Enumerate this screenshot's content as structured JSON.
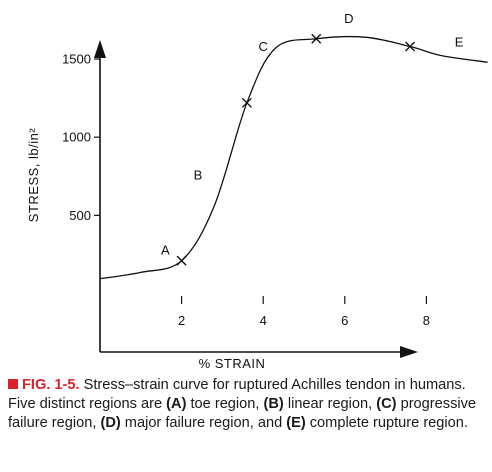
{
  "chart_data": {
    "type": "line",
    "xlabel": "% STRAIN",
    "ylabel": "STRESS, lb/in²",
    "xlim": [
      0,
      10
    ],
    "ylim": [
      0,
      1750
    ],
    "x_ticks": [
      2,
      4,
      6,
      8
    ],
    "y_ticks": [
      500,
      1000,
      1500
    ],
    "series": [
      {
        "x": [
          0,
          1,
          2,
          2.8,
          3.6,
          4.3,
          5.3,
          6.5,
          7.6,
          8.4,
          9.5
        ],
        "values": [
          95,
          135,
          210,
          560,
          1220,
          1570,
          1630,
          1640,
          1580,
          1520,
          1480
        ]
      }
    ],
    "markers": [
      {
        "x": 2.0,
        "y": 210
      },
      {
        "x": 3.6,
        "y": 1220
      },
      {
        "x": 5.3,
        "y": 1630
      },
      {
        "x": 7.6,
        "y": 1580
      }
    ],
    "region_labels": [
      {
        "text": "A",
        "x": 1.6,
        "y": 250
      },
      {
        "text": "B",
        "x": 2.4,
        "y": 730
      },
      {
        "text": "C",
        "x": 4.0,
        "y": 1550
      },
      {
        "text": "D",
        "x": 6.1,
        "y": 1730
      },
      {
        "text": "E",
        "x": 8.8,
        "y": 1580
      }
    ]
  },
  "caption": {
    "fig_label": "FIG. 1-5.",
    "text_1": " Stress–strain curve for ruptured Achilles tendon in humans. Five distinct regions are ",
    "a": "(A)",
    "text_a": " toe region, ",
    "b": "(B)",
    "text_b": " linear region, ",
    "c": "(C)",
    "text_c": " progressive failure region, ",
    "d": "(D)",
    "text_d": " major failure region, and ",
    "e": "(E)",
    "text_e": " complete rupture region."
  }
}
